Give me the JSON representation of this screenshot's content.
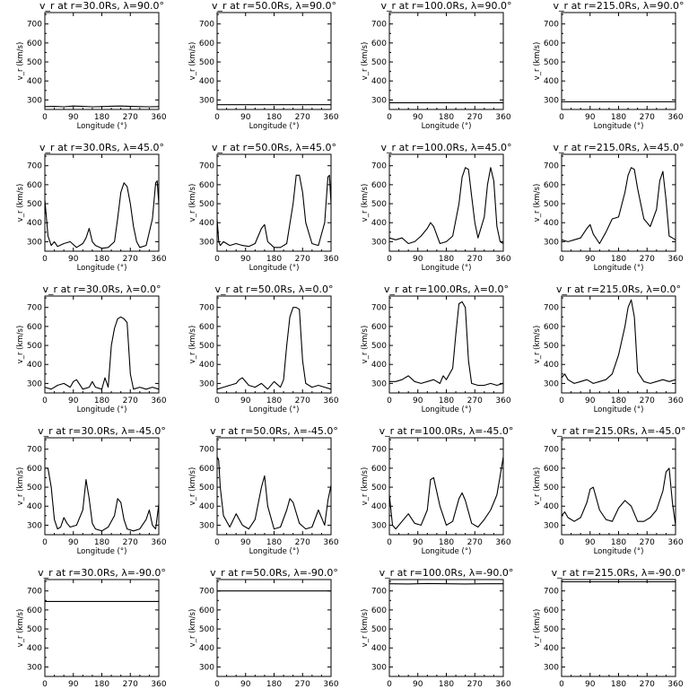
{
  "chart_data": [
    {
      "type": "line",
      "title": "v_r at r=30.0Rs, λ=90.0°",
      "xlabel": "Longitude (°)",
      "ylabel": "v_r (km/s)",
      "xlim": [
        0,
        360
      ],
      "ylim": [
        250,
        760
      ],
      "x_ticks": [
        0,
        90,
        180,
        270,
        360
      ],
      "y_ticks": [
        300,
        400,
        500,
        600,
        700
      ],
      "x": [
        0,
        30,
        60,
        90,
        120,
        150,
        180,
        210,
        240,
        270,
        300,
        330,
        360
      ],
      "values": [
        265,
        266,
        264,
        268,
        266,
        264,
        265,
        267,
        268,
        266,
        265,
        264,
        265
      ]
    },
    {
      "type": "line",
      "title": "v_r at r=50.0Rs, λ=90.0°",
      "xlabel": "Longitude (°)",
      "ylabel": "v_r (km/s)",
      "xlim": [
        0,
        360
      ],
      "ylim": [
        250,
        760
      ],
      "x_ticks": [
        0,
        90,
        180,
        270,
        360
      ],
      "y_ticks": [
        300,
        400,
        500,
        600,
        700
      ],
      "x": [
        0,
        360
      ],
      "values": [
        275,
        275
      ]
    },
    {
      "type": "line",
      "title": "v_r at r=100.0Rs, λ=90.0°",
      "xlabel": "Longitude (°)",
      "ylabel": "v_r (km/s)",
      "xlim": [
        0,
        360
      ],
      "ylim": [
        250,
        760
      ],
      "x_ticks": [
        0,
        90,
        180,
        270,
        360
      ],
      "y_ticks": [
        300,
        400,
        500,
        600,
        700
      ],
      "x": [
        0,
        360
      ],
      "values": [
        285,
        285
      ]
    },
    {
      "type": "line",
      "title": "v_r at r=215.0Rs, λ=90.0°",
      "xlabel": "Longitude (°)",
      "ylabel": "v_r (km/s)",
      "xlim": [
        0,
        360
      ],
      "ylim": [
        250,
        760
      ],
      "x_ticks": [
        0,
        90,
        180,
        270,
        360
      ],
      "y_ticks": [
        300,
        400,
        500,
        600,
        700
      ],
      "x": [
        0,
        360
      ],
      "values": [
        290,
        290
      ]
    },
    {
      "type": "line",
      "title": "v_r at r=30.0Rs, λ=45.0°",
      "xlabel": "Longitude (°)",
      "ylabel": "v_r (km/s)",
      "xlim": [
        0,
        360
      ],
      "ylim": [
        250,
        760
      ],
      "x_ticks": [
        0,
        90,
        180,
        270,
        360
      ],
      "y_ticks": [
        300,
        400,
        500,
        600,
        700
      ],
      "x": [
        0,
        10,
        20,
        30,
        40,
        60,
        80,
        100,
        120,
        130,
        140,
        150,
        160,
        180,
        200,
        220,
        230,
        240,
        250,
        260,
        270,
        280,
        290,
        300,
        320,
        340,
        350,
        355,
        360
      ],
      "values": [
        520,
        330,
        280,
        300,
        275,
        290,
        300,
        270,
        290,
        320,
        370,
        300,
        280,
        265,
        270,
        300,
        420,
        560,
        610,
        590,
        500,
        380,
        300,
        270,
        280,
        420,
        610,
        620,
        500
      ]
    },
    {
      "type": "line",
      "title": "v_r at r=50.0Rs, λ=45.0°",
      "xlabel": "Longitude (°)",
      "ylabel": "v_r (km/s)",
      "xlim": [
        0,
        360
      ],
      "ylim": [
        250,
        760
      ],
      "x_ticks": [
        0,
        90,
        180,
        270,
        360
      ],
      "y_ticks": [
        300,
        400,
        500,
        600,
        700
      ],
      "x": [
        0,
        5,
        10,
        20,
        40,
        60,
        80,
        100,
        120,
        140,
        150,
        160,
        180,
        200,
        220,
        240,
        250,
        260,
        270,
        280,
        300,
        320,
        340,
        350,
        355,
        360
      ],
      "values": [
        420,
        300,
        280,
        300,
        280,
        290,
        280,
        275,
        290,
        370,
        390,
        300,
        270,
        270,
        290,
        500,
        650,
        650,
        560,
        400,
        290,
        280,
        400,
        640,
        650,
        500
      ]
    },
    {
      "type": "line",
      "title": "v_r at r=100.0Rs, λ=45.0°",
      "xlabel": "Longitude (°)",
      "ylabel": "v_r (km/s)",
      "xlim": [
        0,
        360
      ],
      "ylim": [
        250,
        760
      ],
      "x_ticks": [
        0,
        90,
        180,
        270,
        360
      ],
      "y_ticks": [
        300,
        400,
        500,
        600,
        700
      ],
      "x": [
        0,
        20,
        40,
        60,
        80,
        100,
        120,
        130,
        140,
        160,
        180,
        200,
        220,
        230,
        240,
        250,
        260,
        270,
        280,
        300,
        310,
        320,
        330,
        340,
        350,
        360
      ],
      "values": [
        320,
        310,
        320,
        290,
        300,
        330,
        370,
        400,
        380,
        290,
        300,
        330,
        500,
        640,
        690,
        680,
        540,
        400,
        320,
        430,
        600,
        690,
        620,
        380,
        300,
        290
      ]
    },
    {
      "type": "line",
      "title": "v_r at r=215.0Rs, λ=45.0°",
      "xlabel": "Longitude (°)",
      "ylabel": "v_r (km/s)",
      "xlim": [
        0,
        360
      ],
      "ylim": [
        250,
        760
      ],
      "x_ticks": [
        0,
        90,
        180,
        270,
        360
      ],
      "y_ticks": [
        300,
        400,
        500,
        600,
        700
      ],
      "x": [
        0,
        20,
        40,
        60,
        80,
        90,
        100,
        120,
        140,
        160,
        180,
        200,
        210,
        220,
        230,
        240,
        260,
        280,
        300,
        310,
        320,
        330,
        340,
        350,
        360
      ],
      "values": [
        310,
        300,
        310,
        320,
        370,
        390,
        340,
        290,
        350,
        420,
        430,
        560,
        650,
        690,
        680,
        580,
        420,
        380,
        470,
        620,
        670,
        520,
        330,
        320,
        310
      ]
    },
    {
      "type": "line",
      "title": "v_r at r=30.0Rs, λ=0.0°",
      "xlabel": "Longitude (°)",
      "ylabel": "v_r (km/s)",
      "xlim": [
        0,
        360
      ],
      "ylim": [
        250,
        760
      ],
      "x_ticks": [
        0,
        90,
        180,
        270,
        360
      ],
      "y_ticks": [
        300,
        400,
        500,
        600,
        700
      ],
      "x": [
        0,
        20,
        40,
        60,
        80,
        90,
        100,
        120,
        140,
        150,
        160,
        180,
        190,
        200,
        210,
        220,
        230,
        240,
        250,
        260,
        270,
        280,
        300,
        320,
        340,
        360
      ],
      "values": [
        280,
        270,
        290,
        300,
        280,
        310,
        320,
        270,
        280,
        310,
        280,
        270,
        330,
        280,
        500,
        590,
        640,
        650,
        640,
        620,
        350,
        270,
        280,
        270,
        280,
        270
      ]
    },
    {
      "type": "line",
      "title": "v_r at r=50.0Rs, λ=0.0°",
      "xlabel": "Longitude (°)",
      "ylabel": "v_r (km/s)",
      "xlim": [
        0,
        360
      ],
      "ylim": [
        250,
        760
      ],
      "x_ticks": [
        0,
        90,
        180,
        270,
        360
      ],
      "y_ticks": [
        300,
        400,
        500,
        600,
        700
      ],
      "x": [
        0,
        20,
        40,
        60,
        70,
        80,
        100,
        120,
        140,
        160,
        180,
        200,
        210,
        220,
        230,
        240,
        250,
        260,
        270,
        280,
        300,
        320,
        340,
        360
      ],
      "values": [
        270,
        280,
        290,
        300,
        320,
        330,
        290,
        280,
        300,
        270,
        310,
        280,
        320,
        500,
        650,
        700,
        700,
        690,
        420,
        300,
        280,
        290,
        280,
        270
      ]
    },
    {
      "type": "line",
      "title": "v_r at r=100.0Rs, λ=0.0°",
      "xlabel": "Longitude (°)",
      "ylabel": "v_r (km/s)",
      "xlim": [
        0,
        360
      ],
      "ylim": [
        250,
        760
      ],
      "x_ticks": [
        0,
        90,
        180,
        270,
        360
      ],
      "y_ticks": [
        300,
        400,
        500,
        600,
        700
      ],
      "x": [
        0,
        20,
        40,
        60,
        80,
        100,
        120,
        140,
        160,
        170,
        180,
        200,
        210,
        220,
        230,
        240,
        250,
        260,
        280,
        300,
        320,
        340,
        360
      ],
      "values": [
        310,
        310,
        320,
        340,
        310,
        300,
        310,
        320,
        300,
        340,
        320,
        380,
        560,
        720,
        730,
        700,
        420,
        300,
        290,
        290,
        300,
        290,
        300
      ]
    },
    {
      "type": "line",
      "title": "v_r at r=215.0Rs, λ=0.0°",
      "xlabel": "Longitude (°)",
      "ylabel": "v_r (km/s)",
      "xlim": [
        0,
        360
      ],
      "ylim": [
        250,
        760
      ],
      "x_ticks": [
        0,
        90,
        180,
        270,
        360
      ],
      "y_ticks": [
        300,
        400,
        500,
        600,
        700
      ],
      "x": [
        0,
        10,
        20,
        40,
        60,
        80,
        100,
        120,
        140,
        160,
        180,
        200,
        210,
        220,
        230,
        240,
        260,
        280,
        300,
        320,
        340,
        360
      ],
      "values": [
        330,
        350,
        320,
        300,
        310,
        320,
        300,
        310,
        320,
        350,
        450,
        600,
        700,
        740,
        650,
        360,
        310,
        300,
        310,
        320,
        310,
        320
      ]
    },
    {
      "type": "line",
      "title": "v_r at r=30.0Rs, λ=-45.0°",
      "xlabel": "Longitude (°)",
      "ylabel": "v_r (km/s)",
      "xlim": [
        0,
        360
      ],
      "ylim": [
        250,
        760
      ],
      "x_ticks": [
        0,
        90,
        180,
        270,
        360
      ],
      "y_ticks": [
        300,
        400,
        500,
        600,
        700
      ],
      "x": [
        0,
        10,
        20,
        30,
        40,
        50,
        60,
        70,
        80,
        100,
        120,
        130,
        140,
        150,
        160,
        180,
        200,
        220,
        230,
        240,
        250,
        260,
        280,
        300,
        320,
        330,
        340,
        350,
        360
      ],
      "values": [
        600,
        600,
        500,
        330,
        280,
        290,
        340,
        310,
        290,
        300,
        380,
        540,
        440,
        310,
        280,
        270,
        290,
        350,
        440,
        420,
        330,
        280,
        270,
        280,
        330,
        380,
        300,
        280,
        410
      ]
    },
    {
      "type": "line",
      "title": "v_r at r=50.0Rs, λ=-45.0°",
      "xlabel": "Longitude (°)",
      "ylabel": "v_r (km/s)",
      "xlim": [
        0,
        360
      ],
      "ylim": [
        250,
        760
      ],
      "x_ticks": [
        0,
        90,
        180,
        270,
        360
      ],
      "y_ticks": [
        300,
        400,
        500,
        600,
        700
      ],
      "x": [
        0,
        5,
        10,
        20,
        40,
        60,
        80,
        100,
        120,
        140,
        150,
        160,
        180,
        200,
        220,
        230,
        240,
        260,
        280,
        300,
        320,
        340,
        350,
        360
      ],
      "values": [
        660,
        640,
        500,
        350,
        290,
        360,
        300,
        280,
        330,
        500,
        560,
        400,
        280,
        290,
        380,
        440,
        420,
        310,
        280,
        290,
        380,
        300,
        430,
        510
      ]
    },
    {
      "type": "line",
      "title": "v_r at r=100.0Rs, λ=-45.0°",
      "xlabel": "Longitude (°)",
      "ylabel": "v_r (km/s)",
      "xlim": [
        0,
        360
      ],
      "ylim": [
        250,
        760
      ],
      "x_ticks": [
        0,
        90,
        180,
        270,
        360
      ],
      "y_ticks": [
        300,
        400,
        500,
        600,
        700
      ],
      "x": [
        0,
        10,
        20,
        40,
        60,
        80,
        100,
        120,
        130,
        140,
        160,
        180,
        200,
        220,
        230,
        240,
        260,
        280,
        300,
        320,
        340,
        350,
        360
      ],
      "values": [
        460,
        300,
        280,
        320,
        360,
        310,
        300,
        380,
        540,
        550,
        400,
        300,
        320,
        440,
        470,
        430,
        310,
        290,
        330,
        380,
        460,
        560,
        660
      ]
    },
    {
      "type": "line",
      "title": "v_r at r=215.0Rs, λ=-45.0°",
      "xlabel": "Longitude (°)",
      "ylabel": "v_r (km/s)",
      "xlim": [
        0,
        360
      ],
      "ylim": [
        250,
        760
      ],
      "x_ticks": [
        0,
        90,
        180,
        270,
        360
      ],
      "y_ticks": [
        300,
        400,
        500,
        600,
        700
      ],
      "x": [
        0,
        10,
        20,
        40,
        60,
        80,
        90,
        100,
        120,
        140,
        160,
        180,
        200,
        220,
        240,
        260,
        280,
        300,
        320,
        330,
        340,
        350,
        360
      ],
      "values": [
        350,
        370,
        340,
        320,
        340,
        420,
        490,
        500,
        380,
        330,
        320,
        390,
        430,
        400,
        320,
        320,
        340,
        380,
        480,
        580,
        600,
        420,
        300
      ]
    },
    {
      "type": "line",
      "title": "v_r at r=30.0Rs, λ=-90.0°",
      "xlabel": "Longitude (°)",
      "ylabel": "v_r (km/s)",
      "xlim": [
        0,
        360
      ],
      "ylim": [
        250,
        760
      ],
      "x_ticks": [
        0,
        90,
        180,
        270,
        360
      ],
      "y_ticks": [
        300,
        400,
        500,
        600,
        700
      ],
      "x": [
        0,
        360
      ],
      "values": [
        645,
        645
      ]
    },
    {
      "type": "line",
      "title": "v_r at r=50.0Rs, λ=-90.0°",
      "xlabel": "Longitude (°)",
      "ylabel": "v_r (km/s)",
      "xlim": [
        0,
        360
      ],
      "ylim": [
        250,
        760
      ],
      "x_ticks": [
        0,
        90,
        180,
        270,
        360
      ],
      "y_ticks": [
        300,
        400,
        500,
        600,
        700
      ],
      "x": [
        0,
        360
      ],
      "values": [
        700,
        700
      ]
    },
    {
      "type": "line",
      "title": "v_r at r=100.0Rs, λ=-90.0°",
      "xlabel": "Longitude (°)",
      "ylabel": "v_r (km/s)",
      "xlim": [
        0,
        360
      ],
      "ylim": [
        250,
        760
      ],
      "x_ticks": [
        0,
        90,
        180,
        270,
        360
      ],
      "y_ticks": [
        300,
        400,
        500,
        600,
        700
      ],
      "x": [
        0,
        60,
        120,
        180,
        240,
        300,
        360
      ],
      "values": [
        738,
        737,
        739,
        738,
        737,
        738,
        738
      ]
    },
    {
      "type": "line",
      "title": "v_r at r=215.0Rs, λ=-90.0°",
      "xlabel": "Longitude (°)",
      "ylabel": "v_r (km/s)",
      "xlim": [
        0,
        360
      ],
      "ylim": [
        250,
        760
      ],
      "x_ticks": [
        0,
        90,
        180,
        270,
        360
      ],
      "y_ticks": [
        300,
        400,
        500,
        600,
        700
      ],
      "x": [
        0,
        360
      ],
      "values": [
        748,
        748
      ]
    }
  ]
}
